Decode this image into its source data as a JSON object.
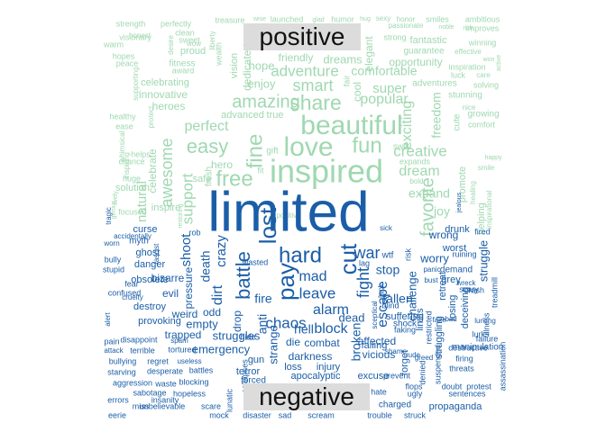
{
  "colors": {
    "positive": "#9fd8b0",
    "negative": "#1b5ea8",
    "label_bg": "#dcdcdc",
    "label_text": "#111111"
  },
  "labels": {
    "positive": "positive",
    "negative": "negative"
  },
  "positive_words": [
    "strength",
    "perfectly",
    "treasure",
    "wise",
    "launched",
    "glad",
    "humor",
    "hug",
    "sexy",
    "honor",
    "smiles",
    "ambitious",
    "warm",
    "honest",
    "clean",
    "sweet",
    "positive",
    "wow",
    "strong",
    "passionate",
    "noble",
    "rich",
    "improves",
    "visionary",
    "hopes",
    "desire",
    "proud",
    "liberty",
    "vision",
    "dedicated",
    "hope",
    "friendly",
    "dreams",
    "elegant",
    "guarantee",
    "fantastic",
    "winning",
    "peace",
    "fitness",
    "award",
    "wealth",
    "adventure",
    "comfortable",
    "opportunity",
    "inspiration",
    "effective",
    "won",
    "celebrating",
    "enjoy",
    "smart",
    "fair",
    "cool",
    "super",
    "adventures",
    "luck",
    "care",
    "solving",
    "innovative",
    "amazing",
    "share",
    "beautiful",
    "popular",
    "stunning",
    "nice",
    "protect",
    "growing",
    "heroes",
    "perfect",
    "advanced",
    "true",
    "exciting",
    "freedom",
    "comfort",
    "ease",
    "easy",
    "love",
    "fun",
    "creative",
    "cute",
    "active",
    "happy",
    "whimsical",
    "supporting",
    "inspiring",
    "free",
    "fine",
    "gift",
    "dream",
    "smile",
    "solution",
    "celebrate",
    "awesome",
    "inspired",
    "hero",
    "safe",
    "fresh",
    "natural",
    "support",
    "favorite",
    "expand",
    "promote",
    "joy",
    "focused",
    "genius",
    "helps",
    "chance",
    "healthy",
    "swift",
    "expands",
    "inspirational",
    "helping",
    "bold",
    "healing",
    "inspire",
    "huge",
    "lively",
    "fit",
    "restoring"
  ],
  "negative_words": [
    "limited",
    "lost",
    "hard",
    "pay",
    "cut",
    "battle",
    "war",
    "shoot",
    "crazy",
    "death",
    "odd",
    "dirt",
    "fight",
    "mad",
    "leave",
    "stop",
    "worry",
    "alarm",
    "chaos",
    "fire",
    "anti",
    "strange",
    "hell",
    "block",
    "dead",
    "escape",
    "fallen",
    "challenge",
    "retreat",
    "struggle",
    "emergency",
    "struggles",
    "drop",
    "die",
    "combat",
    "darkness",
    "loss",
    "apocalyptic",
    "injury",
    "affected",
    "falling",
    "excuse",
    "vicious",
    "suffering",
    "forget",
    "shock",
    "broken",
    "wrong",
    "worst",
    "demand",
    "grey",
    "drunk",
    "fired",
    "ruining",
    "crash",
    "curse",
    "myth",
    "ghost",
    "danger",
    "bizarre",
    "obsolete",
    "evil",
    "empty",
    "weird",
    "trapped",
    "provoking",
    "destroy",
    "confused",
    "stupid",
    "bully",
    "fear",
    "cruelty",
    "worn",
    "tragic",
    "accidentally",
    "fascist",
    "pressure",
    "rob",
    "risk",
    "lag",
    "wtf",
    "lurking",
    "failure",
    "illness",
    "threats",
    "manipulation",
    "firing",
    "doubt",
    "protest",
    "sentences",
    "propaganda",
    "struck",
    "trouble",
    "scream",
    "sad",
    "disaster",
    "mock",
    "lunatic",
    "scare",
    "hopeless",
    "unbelievable",
    "eerie",
    "errors",
    "miss",
    "insanity",
    "sabotage",
    "waste",
    "blocking",
    "aggression",
    "starving",
    "desperate",
    "battles",
    "bullying",
    "regret",
    "useless",
    "terrible",
    "disappoint",
    "tortured",
    "pain",
    "spam",
    "alert",
    "attack",
    "gun",
    "terror",
    "forced",
    "hide",
    "collapses",
    "hate",
    "charged",
    "ugly",
    "flops",
    "suspended",
    "destructive",
    "lurks",
    "deceiving",
    "losing",
    "faking",
    "blind",
    "lack",
    "sceptical",
    "restricted",
    "limits",
    "struggling",
    "denied",
    "prevent",
    "scary",
    "wasted",
    "sick",
    "wreck",
    "assassination",
    "treadmill",
    "fake",
    "bad",
    "shame",
    "rude",
    "greed",
    "panic",
    "bust",
    "jealous"
  ]
}
